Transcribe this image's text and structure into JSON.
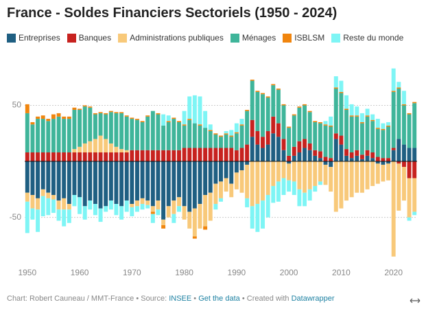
{
  "chart_data": {
    "type": "stacked-bar",
    "title": "France - Soldes Financiers Sectoriels (1950 - 2024)",
    "x": [
      1950,
      1951,
      1952,
      1953,
      1954,
      1955,
      1956,
      1957,
      1958,
      1959,
      1960,
      1961,
      1962,
      1963,
      1964,
      1965,
      1966,
      1967,
      1968,
      1969,
      1970,
      1971,
      1972,
      1973,
      1974,
      1975,
      1976,
      1977,
      1978,
      1979,
      1980,
      1981,
      1982,
      1983,
      1984,
      1985,
      1986,
      1987,
      1988,
      1989,
      1990,
      1991,
      1992,
      1993,
      1994,
      1995,
      1996,
      1997,
      1998,
      1999,
      2000,
      2001,
      2002,
      2003,
      2004,
      2005,
      2006,
      2007,
      2008,
      2009,
      2010,
      2011,
      2012,
      2013,
      2014,
      2015,
      2016,
      2017,
      2018,
      2019,
      2020,
      2021,
      2022,
      2023,
      2024
    ],
    "xlim": [
      1949.5,
      2024.5
    ],
    "xticks": [
      1950,
      1960,
      1970,
      1980,
      1990,
      2000,
      2010,
      2020
    ],
    "ylim": [
      -95,
      92
    ],
    "yticks": [
      -50,
      50
    ],
    "grid": true,
    "series": [
      {
        "name": "Entreprises",
        "color": "#1f5f82",
        "values": [
          -28,
          -30,
          -33,
          -25,
          -28,
          -30,
          -35,
          -33,
          -38,
          -30,
          -32,
          -40,
          -35,
          -38,
          -42,
          -40,
          -35,
          -38,
          -40,
          -35,
          -38,
          -35,
          -33,
          -35,
          -40,
          -35,
          -52,
          -40,
          -35,
          -32,
          -40,
          -45,
          -42,
          -38,
          -30,
          -28,
          -20,
          -18,
          -15,
          -20,
          -10,
          -8,
          -3,
          22,
          15,
          12,
          15,
          25,
          22,
          10,
          -2,
          5,
          8,
          12,
          10,
          5,
          3,
          -3,
          -5,
          20,
          15,
          5,
          3,
          5,
          2,
          5,
          3,
          -2,
          -3,
          -2,
          10,
          20,
          15,
          12,
          12
        ]
      },
      {
        "name": "Banques",
        "color": "#c7221f",
        "values": [
          8,
          8,
          8,
          8,
          8,
          8,
          8,
          8,
          8,
          8,
          8,
          8,
          8,
          8,
          8,
          8,
          8,
          8,
          8,
          8,
          10,
          10,
          10,
          10,
          10,
          10,
          10,
          10,
          10,
          10,
          12,
          12,
          12,
          12,
          12,
          12,
          12,
          12,
          12,
          12,
          10,
          12,
          15,
          15,
          12,
          10,
          12,
          15,
          12,
          10,
          5,
          8,
          10,
          8,
          6,
          5,
          6,
          4,
          3,
          5,
          8,
          6,
          5,
          5,
          4,
          5,
          5,
          4,
          3,
          3,
          2,
          -2,
          -5,
          -15,
          -15
        ]
      },
      {
        "name": "Administrations publiques",
        "color": "#f8c97a",
        "values": [
          -8,
          -12,
          -10,
          -6,
          -5,
          -4,
          -8,
          -10,
          -5,
          3,
          5,
          8,
          10,
          12,
          15,
          12,
          8,
          5,
          3,
          2,
          -3,
          -5,
          -5,
          -4,
          -5,
          -8,
          -5,
          -10,
          -12,
          -8,
          -12,
          -15,
          -25,
          -22,
          -28,
          -25,
          -18,
          -15,
          -12,
          -12,
          -15,
          -20,
          -30,
          -40,
          -38,
          -35,
          -30,
          -22,
          -18,
          -15,
          -15,
          -18,
          -25,
          -28,
          -25,
          -22,
          -18,
          -18,
          -22,
          -45,
          -42,
          -35,
          -32,
          -28,
          -28,
          -25,
          -22,
          -18,
          -15,
          -15,
          -85,
          -42,
          -30,
          -35,
          -30
        ]
      },
      {
        "name": "Ménages",
        "color": "#3fb59a",
        "values": [
          35,
          25,
          30,
          30,
          28,
          30,
          32,
          30,
          30,
          35,
          33,
          33,
          30,
          22,
          20,
          22,
          28,
          30,
          32,
          30,
          28,
          27,
          25,
          30,
          35,
          32,
          22,
          25,
          28,
          25,
          20,
          25,
          22,
          20,
          18,
          15,
          12,
          10,
          12,
          10,
          15,
          20,
          30,
          35,
          35,
          38,
          30,
          28,
          30,
          30,
          25,
          28,
          30,
          30,
          28,
          25,
          25,
          28,
          28,
          40,
          38,
          35,
          32,
          30,
          28,
          30,
          28,
          25,
          25,
          28,
          50,
          45,
          35,
          30,
          40
        ]
      },
      {
        "name": "ISBLSM",
        "color": "#f0850e",
        "values": [
          8,
          2,
          2,
          3,
          2,
          4,
          3,
          2,
          2,
          2,
          1,
          1,
          1,
          1,
          1,
          1,
          1,
          1,
          1,
          1,
          1,
          1,
          1,
          1,
          -2,
          1,
          -3,
          1,
          1,
          1,
          1,
          1,
          -2,
          1,
          -3,
          1,
          1,
          1,
          1,
          1,
          1,
          1,
          1,
          1,
          1,
          1,
          1,
          1,
          1,
          1,
          1,
          1,
          1,
          1,
          1,
          1,
          1,
          1,
          1,
          1,
          1,
          1,
          1,
          1,
          1,
          1,
          1,
          1,
          1,
          1,
          1,
          1,
          1,
          1,
          1
        ]
      },
      {
        "name": "Reste du monde",
        "color": "#7ef5f5",
        "values": [
          -28,
          -10,
          -20,
          -18,
          -15,
          -12,
          -10,
          -15,
          -12,
          -10,
          -15,
          -12,
          -8,
          -10,
          -12,
          -5,
          -8,
          -10,
          -12,
          -10,
          -8,
          -5,
          -5,
          -3,
          -8,
          -5,
          10,
          5,
          -8,
          -5,
          12,
          20,
          25,
          25,
          15,
          5,
          -5,
          -3,
          2,
          5,
          8,
          5,
          -8,
          -20,
          -25,
          -25,
          -20,
          -15,
          -18,
          -15,
          -10,
          -12,
          -15,
          -12,
          -10,
          -5,
          -3,
          3,
          8,
          10,
          10,
          12,
          10,
          8,
          8,
          6,
          5,
          8,
          5,
          3,
          20,
          5,
          12,
          -3,
          -3
        ]
      }
    ],
    "footer": {
      "credit": "Chart: Robert Cauneau / MMT-France",
      "separator": "•",
      "source_label": "Source:",
      "source": "INSEE",
      "get_data": "Get the data",
      "created_with": "Created with",
      "tool": "Datawrapper"
    }
  }
}
